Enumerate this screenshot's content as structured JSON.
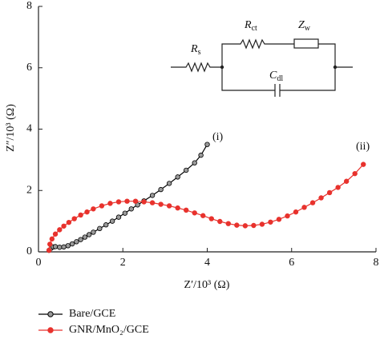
{
  "chart_data": {
    "type": "line",
    "x_label": "Z′/10³ (Ω)",
    "y_label": "Z″/10³ (Ω)",
    "xlim": [
      0,
      8
    ],
    "ylim": [
      0,
      8
    ],
    "xticks": [
      0,
      2,
      4,
      6,
      8
    ],
    "yticks": [
      0,
      2,
      4,
      6,
      8
    ],
    "legend": "bottom-left",
    "series": [
      {
        "name": "Bare/GCE",
        "color": "#000000",
        "marker_fill": "#9a9a9a",
        "x": [
          0.25,
          0.3,
          0.35,
          0.4,
          0.5,
          0.6,
          0.7,
          0.8,
          0.9,
          1.0,
          1.1,
          1.2,
          1.3,
          1.45,
          1.6,
          1.75,
          1.9,
          2.05,
          2.2,
          2.35,
          2.5,
          2.7,
          2.9,
          3.1,
          3.3,
          3.5,
          3.7,
          3.85,
          4.0
        ],
        "values": [
          0.05,
          0.12,
          0.16,
          0.17,
          0.15,
          0.16,
          0.2,
          0.26,
          0.33,
          0.4,
          0.48,
          0.56,
          0.64,
          0.76,
          0.88,
          1.0,
          1.13,
          1.26,
          1.4,
          1.53,
          1.66,
          1.84,
          2.03,
          2.23,
          2.44,
          2.66,
          2.9,
          3.15,
          3.5
        ]
      },
      {
        "name": "GNR/MnO₂/GCE",
        "color": "#e8322d",
        "marker_fill": "#e8322d",
        "x": [
          0.25,
          0.27,
          0.32,
          0.4,
          0.5,
          0.6,
          0.72,
          0.85,
          1.0,
          1.15,
          1.3,
          1.5,
          1.7,
          1.9,
          2.1,
          2.3,
          2.5,
          2.7,
          2.9,
          3.1,
          3.3,
          3.5,
          3.7,
          3.9,
          4.1,
          4.3,
          4.5,
          4.7,
          4.9,
          5.1,
          5.3,
          5.5,
          5.7,
          5.9,
          6.1,
          6.3,
          6.5,
          6.7,
          6.9,
          7.1,
          7.3,
          7.5,
          7.7
        ],
        "values": [
          0.05,
          0.25,
          0.42,
          0.58,
          0.72,
          0.84,
          0.96,
          1.08,
          1.2,
          1.3,
          1.4,
          1.5,
          1.58,
          1.63,
          1.65,
          1.65,
          1.63,
          1.6,
          1.55,
          1.5,
          1.43,
          1.36,
          1.27,
          1.18,
          1.08,
          0.99,
          0.92,
          0.87,
          0.85,
          0.86,
          0.9,
          0.97,
          1.06,
          1.17,
          1.3,
          1.45,
          1.6,
          1.76,
          1.93,
          2.1,
          2.3,
          2.55,
          2.85
        ]
      }
    ],
    "annotations": [
      "(i)",
      "(ii)"
    ],
    "circuit": [
      {
        "symbol": "R",
        "subscript": "s"
      },
      {
        "symbol": "R",
        "subscript": "ct"
      },
      {
        "symbol": "Z",
        "subscript": "w"
      },
      {
        "symbol": "C",
        "subscript": "dl"
      }
    ]
  }
}
